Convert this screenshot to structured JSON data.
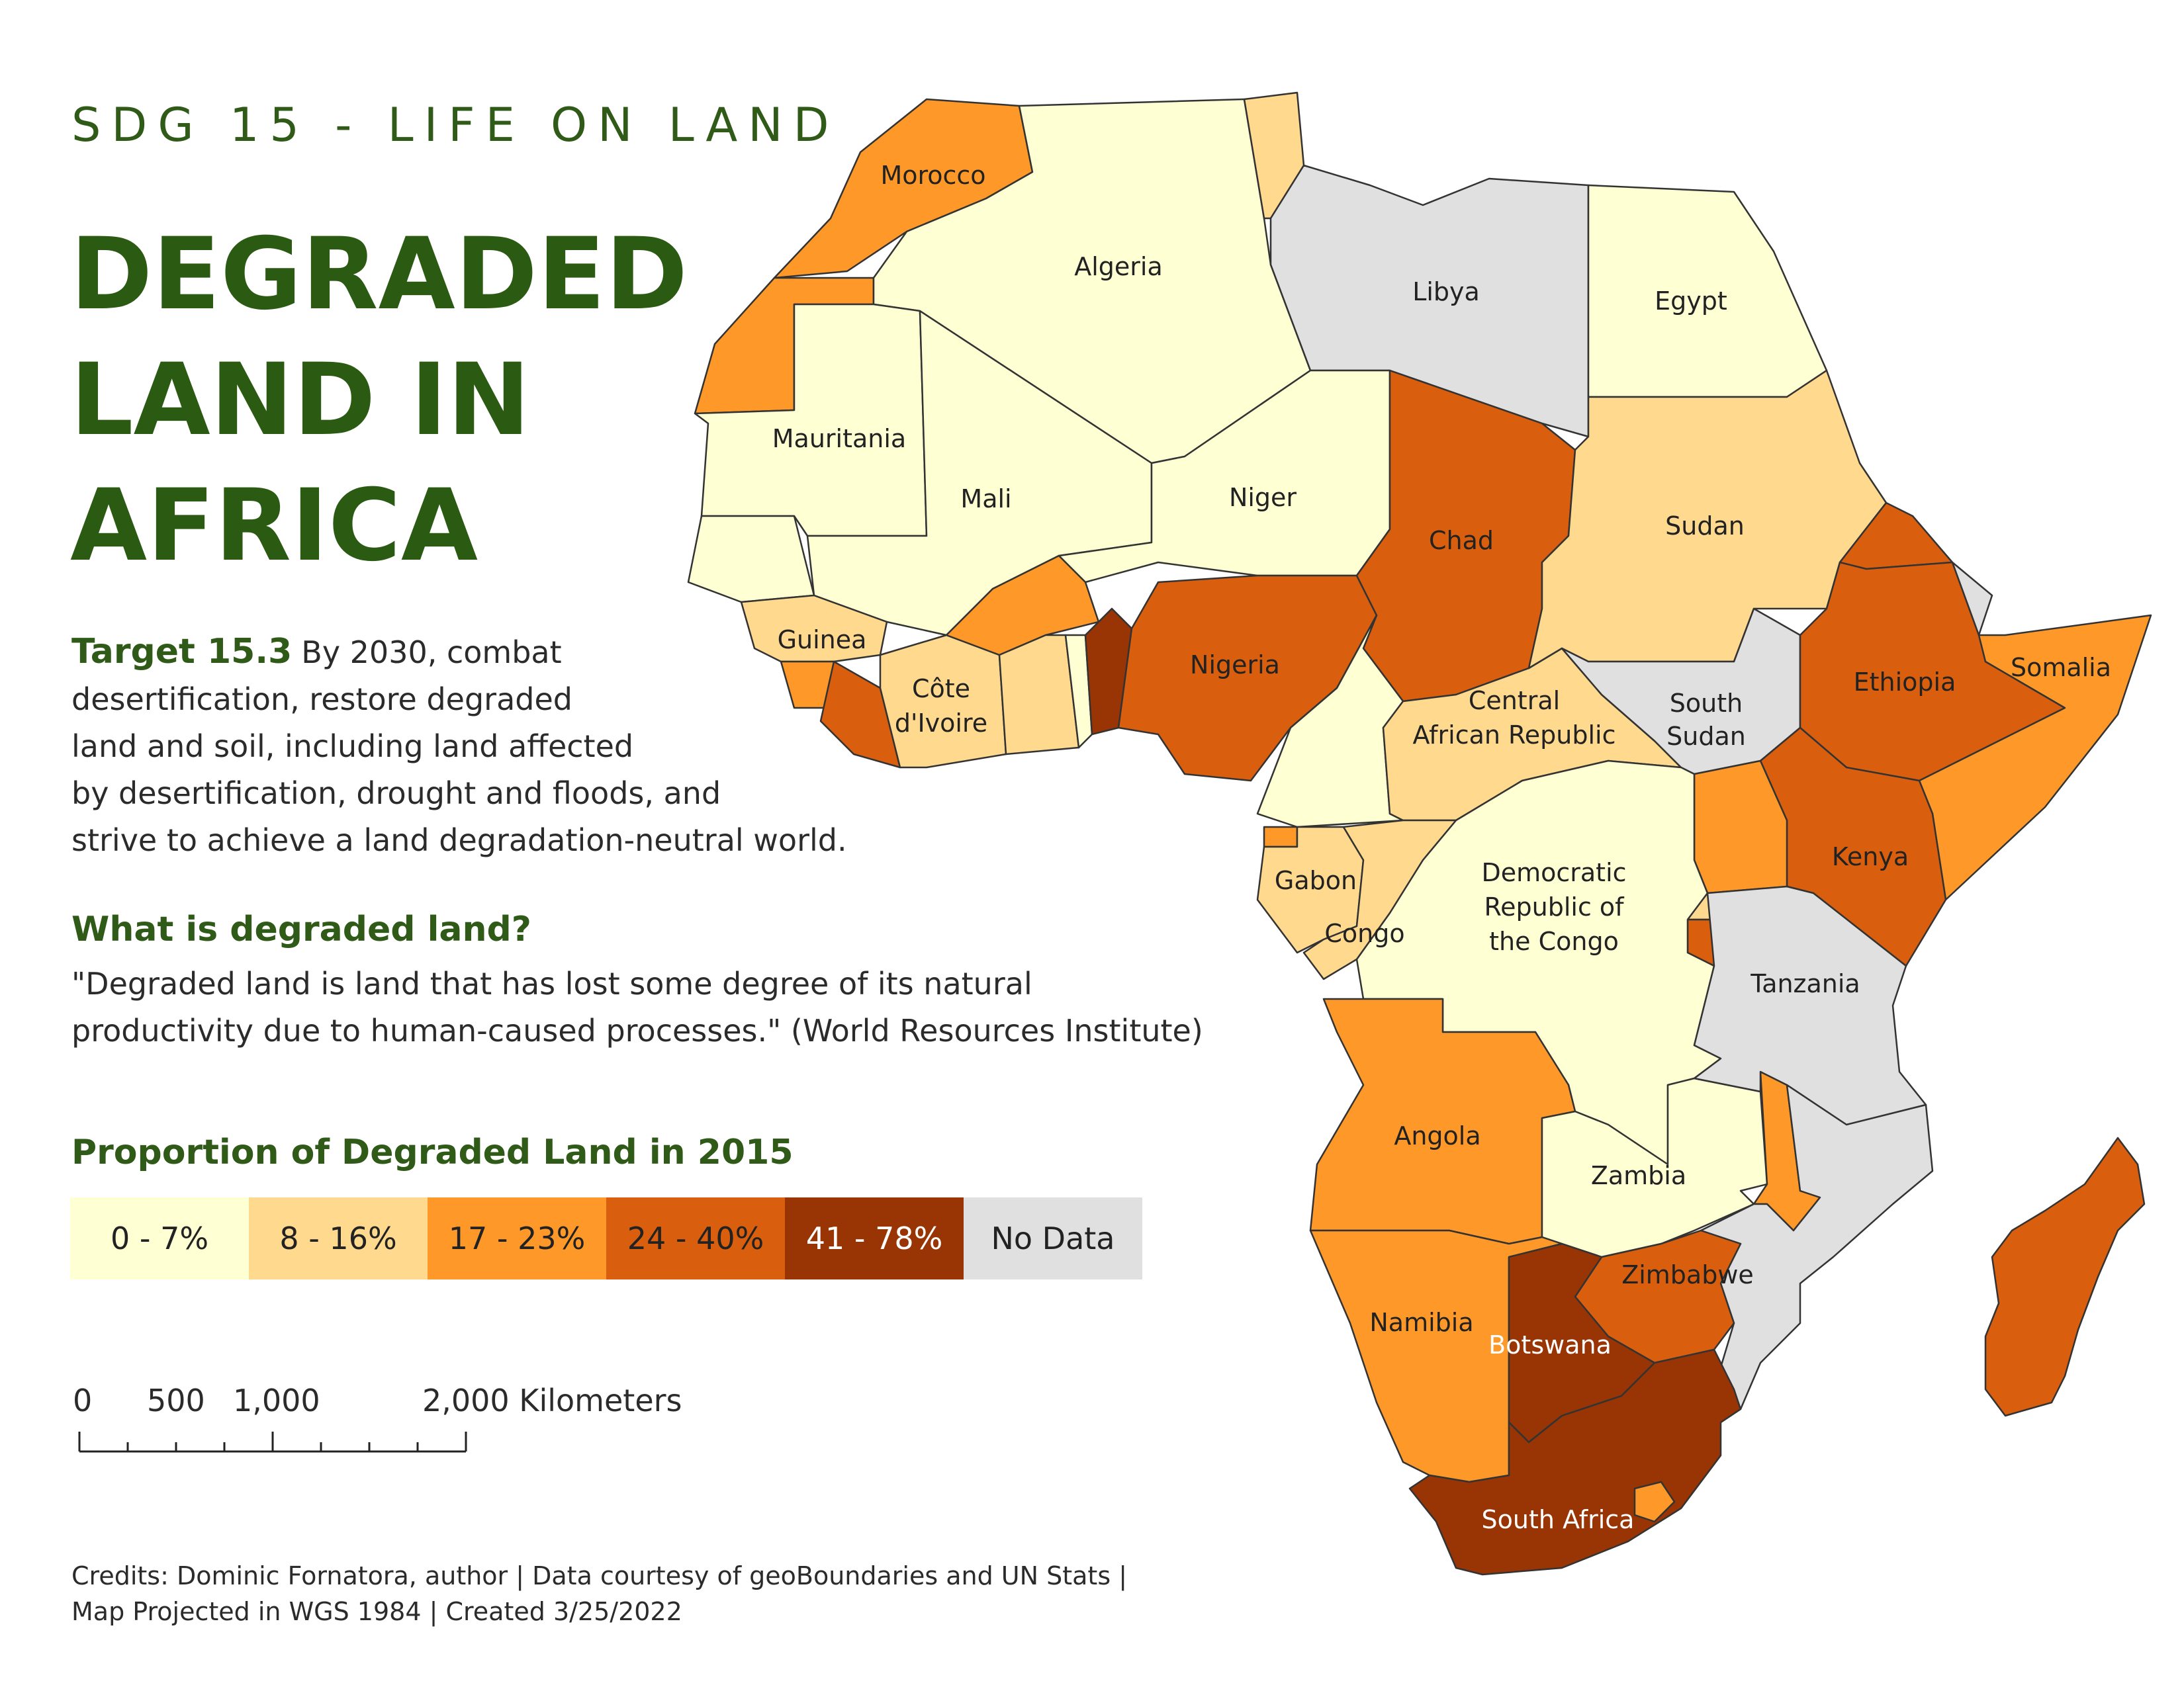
{
  "header": {
    "kicker": "SDG 15 - LIFE ON LAND",
    "title_lines": [
      "DEGRADED",
      "LAND IN",
      "AFRICA"
    ]
  },
  "target": {
    "label": "Target 15.3",
    "text_lines": [
      "By 2030, combat",
      "desertification, restore degraded",
      "land and soil, including land affected",
      "by desertification, drought and floods, and",
      "strive to achieve a land degradation-neutral world."
    ]
  },
  "definition": {
    "heading": "What is degraded land?",
    "lines": [
      "\"Degraded land is land that has lost some degree of its natural",
      "productivity due to human-caused processes.\" (World Resources Institute)"
    ]
  },
  "legend": {
    "title": "Proportion of Degraded Land in 2015",
    "classes": [
      {
        "label": "0 - 7%",
        "color": "#ffffd4",
        "text_color": "#222222"
      },
      {
        "label": "8 - 16%",
        "color": "#fed98e",
        "text_color": "#222222"
      },
      {
        "label": "17 - 23%",
        "color": "#fe9929",
        "text_color": "#222222"
      },
      {
        "label": "24 - 40%",
        "color": "#d95f0e",
        "text_color": "#222222"
      },
      {
        "label": "41 - 78%",
        "color": "#993404",
        "text_color": "#ffffff"
      },
      {
        "label": "No Data",
        "color": "#e0e0e0",
        "text_color": "#222222"
      }
    ]
  },
  "scale_bar": {
    "labels": [
      "0",
      "500",
      "1,000",
      "2,000 Kilometers"
    ]
  },
  "credits": {
    "lines": [
      "Credits: Dominic Fornatora, author | Data courtesy of geoBoundaries and UN Stats |",
      "Map Projected in WGS 1984 | Created 3/25/2022"
    ]
  },
  "map": {
    "colors": {
      "c1": "#ffffd4",
      "c2": "#fed98e",
      "c3": "#fe9929",
      "c4": "#d95f0e",
      "c5": "#993404",
      "nodata": "#e0e0e0",
      "border": "#333333"
    },
    "country_labels": {
      "morocco": "Morocco",
      "algeria": "Algeria",
      "libya": "Libya",
      "egypt": "Egypt",
      "mauritania": "Mauritania",
      "mali": "Mali",
      "niger": "Niger",
      "chad": "Chad",
      "sudan": "Sudan",
      "guinea": "Guinea",
      "cote_divoire": [
        "Côte",
        "d'Ivoire"
      ],
      "nigeria": "Nigeria",
      "car": [
        "Central",
        "African Republic"
      ],
      "south_sudan": [
        "South",
        "Sudan"
      ],
      "ethiopia": "Ethiopia",
      "somalia": "Somalia",
      "kenya": "Kenya",
      "drc": [
        "Democratic",
        "Republic of",
        "the Congo"
      ],
      "gabon": "Gabon",
      "congo": "Congo",
      "tanzania": "Tanzania",
      "angola": "Angola",
      "zambia": "Zambia",
      "zimbabwe": "Zimbabwe",
      "namibia": "Namibia",
      "botswana": "Botswana",
      "south_africa": "South Africa"
    }
  }
}
